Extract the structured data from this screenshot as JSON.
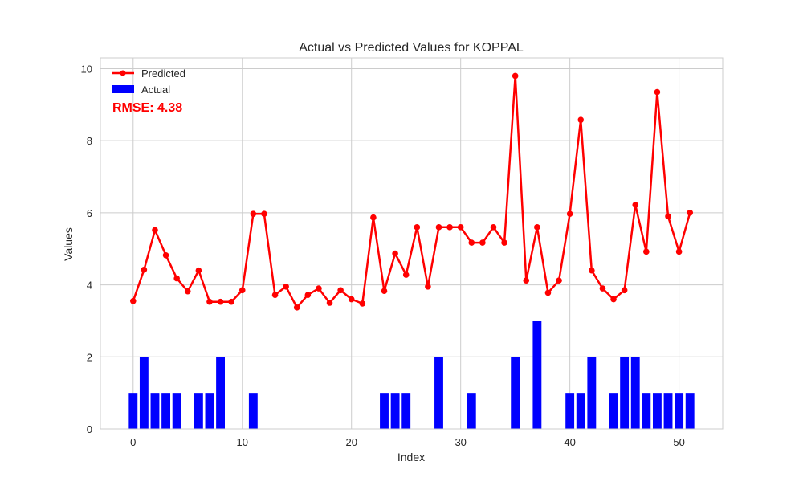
{
  "chart_data": {
    "type": "bar+line",
    "title": "Actual vs Predicted Values for KOPPAL",
    "xlabel": "Index",
    "ylabel": "Values",
    "xlim": [
      -3,
      54
    ],
    "ylim": [
      0,
      10.3
    ],
    "xticks": [
      0,
      10,
      20,
      30,
      40,
      50
    ],
    "yticks": [
      0,
      2,
      4,
      6,
      8,
      10
    ],
    "grid": true,
    "legend_position": "top-left",
    "annotation": "RMSE: 4.38",
    "x": [
      0,
      1,
      2,
      3,
      4,
      5,
      6,
      7,
      8,
      9,
      10,
      11,
      12,
      13,
      14,
      15,
      16,
      17,
      18,
      19,
      20,
      21,
      22,
      23,
      24,
      25,
      26,
      27,
      28,
      29,
      30,
      31,
      32,
      33,
      34,
      35,
      36,
      37,
      38,
      39,
      40,
      41,
      42,
      43,
      44,
      45,
      46,
      47,
      48,
      49,
      50,
      51
    ],
    "series": [
      {
        "name": "Predicted",
        "type": "line",
        "color": "#ff0000",
        "values": [
          3.55,
          4.42,
          5.52,
          4.82,
          4.18,
          3.82,
          4.4,
          3.53,
          3.53,
          3.53,
          3.85,
          5.97,
          5.97,
          3.72,
          3.95,
          3.37,
          3.72,
          3.9,
          3.5,
          3.85,
          3.6,
          3.48,
          5.87,
          3.83,
          4.87,
          4.28,
          5.6,
          3.95,
          5.6,
          5.6,
          5.6,
          5.17,
          5.17,
          5.6,
          5.17,
          9.8,
          4.12,
          5.6,
          3.78,
          4.12,
          5.97,
          8.58,
          4.4,
          3.9,
          3.6,
          3.85,
          6.22,
          4.92,
          9.35,
          5.9,
          4.92,
          6.0
        ]
      },
      {
        "name": "Actual",
        "type": "bar",
        "color": "#0000ff",
        "values": [
          1,
          2,
          1,
          1,
          1,
          0,
          1,
          1,
          2,
          0,
          0,
          1,
          0,
          0,
          0,
          0,
          0,
          0,
          0,
          0,
          0,
          0,
          0,
          1,
          1,
          1,
          0,
          0,
          2,
          0,
          0,
          1,
          0,
          0,
          0,
          2,
          0,
          3,
          0,
          0,
          1,
          1,
          2,
          0,
          1,
          2,
          2,
          1,
          1,
          1,
          1,
          1
        ]
      }
    ]
  },
  "colors": {
    "grid": "#cccccc",
    "frame": "#cccccc",
    "text": "#262626",
    "annotation": "#ff0000"
  }
}
